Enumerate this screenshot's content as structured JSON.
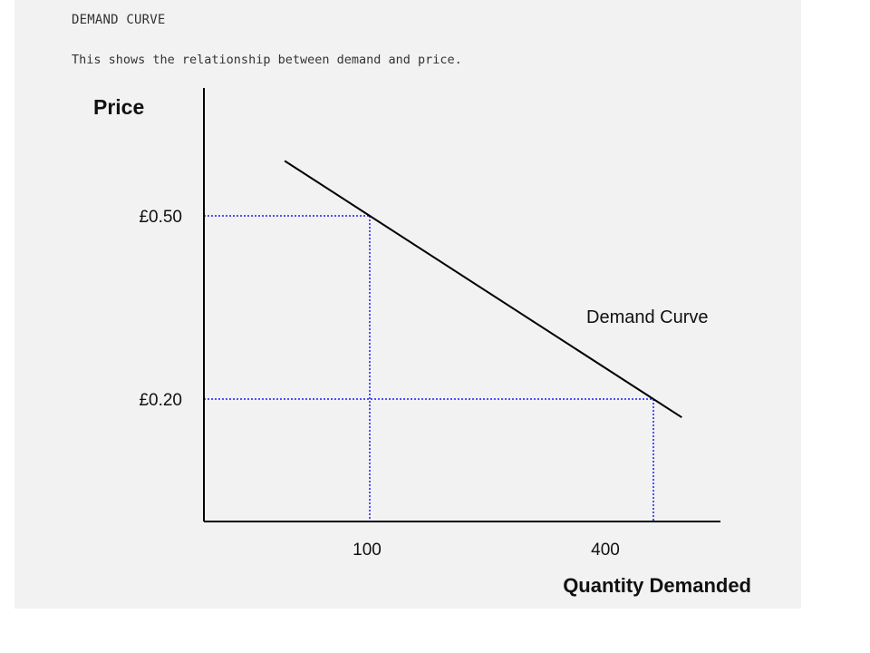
{
  "page": {
    "title": "DEMAND CURVE",
    "subtitle": "This shows the relationship between demand and price."
  },
  "chart_data": {
    "type": "line",
    "title": "",
    "xlabel": "Quantity Demanded",
    "ylabel": "Price",
    "x_ticks": [
      {
        "label": "100",
        "value": 100
      },
      {
        "label": "400",
        "value": 400
      }
    ],
    "y_ticks": [
      {
        "label": "£0.50",
        "value": 0.5
      },
      {
        "label": "£0.20",
        "value": 0.2
      }
    ],
    "series": [
      {
        "name": "Demand Curve",
        "points": [
          {
            "x": 10,
            "y": 0.59
          },
          {
            "x": 100,
            "y": 0.5
          },
          {
            "x": 400,
            "y": 0.2
          },
          {
            "x": 430,
            "y": 0.17
          }
        ]
      }
    ],
    "reference_points": [
      {
        "x": 100,
        "y": 0.5
      },
      {
        "x": 400,
        "y": 0.2
      }
    ],
    "annotation": "Demand Curve",
    "grid": false,
    "colors": {
      "axis": "#000000",
      "curve": "#000000",
      "guides": "#1a1aff",
      "background": "#f2f2f2"
    }
  }
}
